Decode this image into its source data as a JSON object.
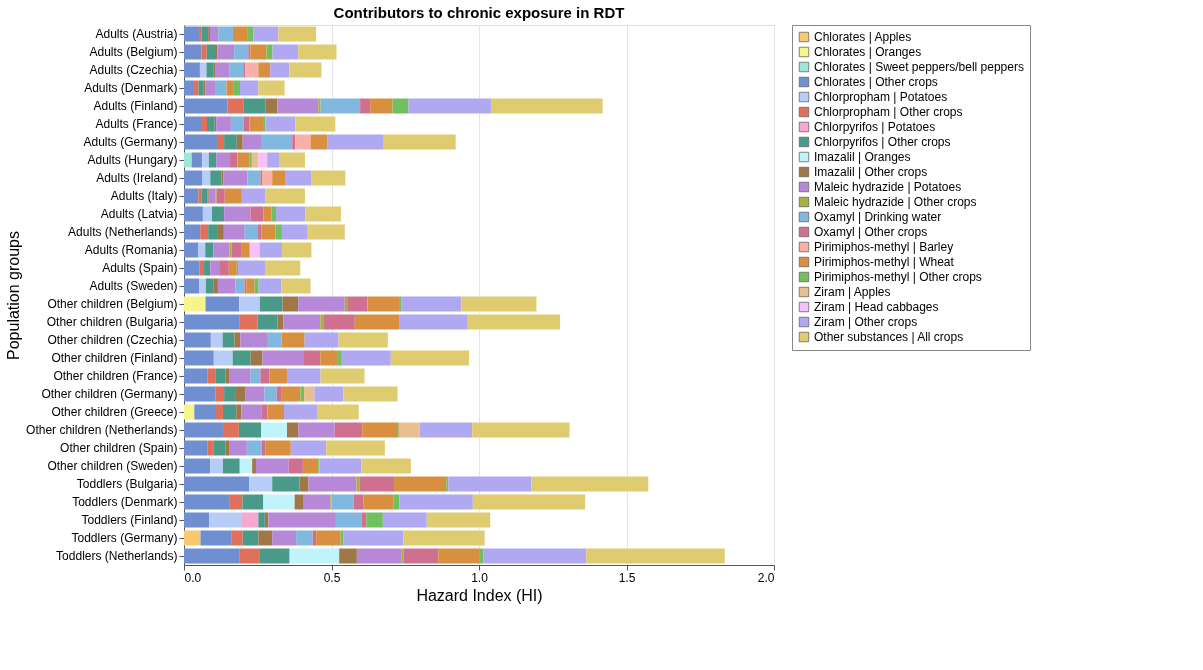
{
  "chart_data": {
    "type": "bar",
    "orientation": "horizontal",
    "stacked": true,
    "title": "Contributors to chronic exposure in RDT",
    "xlabel": "Hazard Index (HI)",
    "ylabel": "Population groups",
    "categories": [
      "Adults (Austria)",
      "Adults (Belgium)",
      "Adults (Czechia)",
      "Adults (Denmark)",
      "Adults (Finland)",
      "Adults (France)",
      "Adults (Germany)",
      "Adults (Hungary)",
      "Adults (Ireland)",
      "Adults (Italy)",
      "Adults (Latvia)",
      "Adults (Netherlands)",
      "Adults (Romania)",
      "Adults (Spain)",
      "Adults (Sweden)",
      "Other children (Belgium)",
      "Other children (Bulgaria)",
      "Other children (Czechia)",
      "Other children (Finland)",
      "Other children (France)",
      "Other children (Germany)",
      "Other children (Greece)",
      "Other children (Netherlands)",
      "Other children (Spain)",
      "Other children (Sweden)",
      "Toddlers (Bulgaria)",
      "Toddlers (Denmark)",
      "Toddlers (Finland)",
      "Toddlers (Germany)",
      "Toddlers (Netherlands)"
    ],
    "xlim": [
      0,
      2
    ],
    "xticks": [
      {
        "value": 0,
        "label": "0.0"
      },
      {
        "value": 0.5,
        "label": "0.5"
      },
      {
        "value": 1,
        "label": "1.0"
      },
      {
        "value": 1.5,
        "label": "1.5"
      },
      {
        "value": 2,
        "label": "2.0"
      }
    ],
    "grid": "x",
    "legend": "right",
    "series": [
      {
        "name": "Chlorates | Apples",
        "color": "#f9c970",
        "values": [
          0,
          0,
          0,
          0,
          0,
          0,
          0,
          0,
          0,
          0,
          0,
          0,
          0,
          0,
          0,
          0,
          0,
          0,
          0,
          0,
          0,
          0,
          0,
          0,
          0,
          0,
          0,
          0,
          0.056,
          0
        ]
      },
      {
        "name": "Chlorates | Oranges",
        "color": "#f5f58a",
        "values": [
          0,
          0,
          0,
          0,
          0,
          0,
          0,
          0,
          0,
          0,
          0,
          0,
          0,
          0,
          0,
          0.073,
          0,
          0,
          0,
          0,
          0,
          0.035,
          0,
          0,
          0,
          0,
          0,
          0,
          0,
          0
        ]
      },
      {
        "name": "Chlorates | Sweet peppers/bell peppers",
        "color": "#a0e6d8",
        "values": [
          0,
          0,
          0,
          0,
          0,
          0,
          0,
          0.026,
          0,
          0,
          0,
          0,
          0,
          0,
          0,
          0,
          0,
          0,
          0,
          0,
          0,
          0,
          0,
          0,
          0,
          0,
          0,
          0,
          0,
          0
        ]
      },
      {
        "name": "Chlorates | Other crops",
        "color": "#6f8fd0",
        "values": [
          0.051,
          0.059,
          0.054,
          0.034,
          0.147,
          0.061,
          0.112,
          0.036,
          0.061,
          0.049,
          0.064,
          0.055,
          0.049,
          0.053,
          0.052,
          0.114,
          0.187,
          0.091,
          0.101,
          0.079,
          0.106,
          0.07,
          0.132,
          0.079,
          0.089,
          0.221,
          0.153,
          0.085,
          0.106,
          0.187
        ]
      },
      {
        "name": "Chlorpropham | Potatoes",
        "color": "#b8ccf8",
        "values": [
          0,
          0,
          0.022,
          0,
          0,
          0,
          0,
          0.022,
          0.028,
          0,
          0.031,
          0,
          0.023,
          0,
          0.022,
          0.07,
          0,
          0.04,
          0.064,
          0,
          0,
          0,
          0,
          0,
          0.043,
          0.078,
          0,
          0.109,
          0,
          0
        ]
      },
      {
        "name": "Chlorpropham | Other crops",
        "color": "#e0705a",
        "values": [
          0.009,
          0.018,
          0,
          0.015,
          0.054,
          0.017,
          0.024,
          0,
          0,
          0.01,
          0,
          0.027,
          0,
          0.015,
          0,
          0,
          0.062,
          0,
          0,
          0.027,
          0.03,
          0.027,
          0.054,
          0.02,
          0,
          0,
          0.045,
          0,
          0.037,
          0.068
        ]
      },
      {
        "name": "Chlorpyrifos | Potatoes",
        "color": "#f7a8d0",
        "values": [
          0,
          0,
          0,
          0,
          0,
          0,
          0,
          0,
          0,
          0,
          0,
          0,
          0,
          0,
          0,
          0,
          0,
          0,
          0,
          0,
          0,
          0,
          0,
          0,
          0,
          0,
          0,
          0.058,
          0,
          0
        ]
      },
      {
        "name": "Chlorpyrifos | Other crops",
        "color": "#4a9a8a",
        "values": [
          0.022,
          0.028,
          0.025,
          0.018,
          0.076,
          0.026,
          0.043,
          0.025,
          0.038,
          0.021,
          0.037,
          0.03,
          0.027,
          0.021,
          0.025,
          0.077,
          0.068,
          0.04,
          0.061,
          0.035,
          0.04,
          0.045,
          0.076,
          0.042,
          0.057,
          0.093,
          0.071,
          0.022,
          0.053,
          0.103
        ]
      },
      {
        "name": "Imazalil | Oranges",
        "color": "#c0f4fa",
        "values": [
          0,
          0,
          0,
          0,
          0,
          0,
          0,
          0,
          0,
          0,
          0,
          0,
          0,
          0,
          0,
          0,
          0,
          0,
          0,
          0,
          0,
          0,
          0.087,
          0,
          0.042,
          0,
          0.106,
          0,
          0,
          0.168
        ]
      },
      {
        "name": "Imazalil | Other crops",
        "color": "#a07848",
        "values": [
          0.006,
          0.008,
          0.004,
          0.005,
          0.04,
          0.005,
          0.02,
          0,
          0.007,
          0.004,
          0.004,
          0.023,
          0,
          0,
          0.016,
          0.053,
          0.02,
          0.02,
          0.04,
          0.014,
          0.033,
          0.017,
          0.038,
          0.014,
          0.013,
          0.03,
          0.031,
          0.012,
          0.047,
          0.06
        ]
      },
      {
        "name": "Maleic hydrazide | Potatoes",
        "color": "#b888d8",
        "values": [
          0.028,
          0.057,
          0.05,
          0.033,
          0.138,
          0.05,
          0.062,
          0.047,
          0.081,
          0.023,
          0.089,
          0.071,
          0.055,
          0.033,
          0.059,
          0.158,
          0.125,
          0.09,
          0.138,
          0.071,
          0.064,
          0.068,
          0.124,
          0.058,
          0.111,
          0.163,
          0.09,
          0.229,
          0.081,
          0.152
        ]
      },
      {
        "name": "Maleic hydrazide | Other crops",
        "color": "#a8b040",
        "values": [
          0,
          0,
          0,
          0,
          0.008,
          0,
          0,
          0,
          0,
          0.004,
          0,
          0,
          0.007,
          0,
          0,
          0.008,
          0.01,
          0.004,
          0,
          0,
          0,
          0,
          0,
          0,
          0,
          0.011,
          0.004,
          0,
          0,
          0.006
        ]
      },
      {
        "name": "Oxamyl | Drinking water",
        "color": "#80b8e0",
        "values": [
          0.05,
          0.048,
          0.046,
          0.039,
          0.134,
          0.044,
          0.106,
          0,
          0.044,
          0,
          0,
          0.045,
          0,
          0,
          0.031,
          0,
          0,
          0.046,
          0,
          0.033,
          0.041,
          0,
          0,
          0.05,
          0,
          0,
          0.075,
          0.088,
          0.056,
          0
        ]
      },
      {
        "name": "Oxamyl | Other crops",
        "color": "#d07090",
        "values": [
          0,
          0.007,
          0.006,
          0,
          0.034,
          0.019,
          0.01,
          0.025,
          0.007,
          0.027,
          0.044,
          0.011,
          0.035,
          0.03,
          0.006,
          0.069,
          0.107,
          0,
          0.058,
          0.03,
          0.015,
          0.021,
          0.093,
          0.014,
          0.048,
          0.116,
          0.034,
          0.015,
          0.012,
          0.118
        ]
      },
      {
        "name": "Pirimiphos-methyl | Barley",
        "color": "#f8b0a8",
        "values": [
          0,
          0,
          0.045,
          0,
          0,
          0,
          0.052,
          0,
          0.033,
          0,
          0,
          0,
          0,
          0,
          0,
          0,
          0,
          0,
          0,
          0,
          0,
          0,
          0,
          0,
          0,
          0,
          0,
          0,
          0,
          0
        ]
      },
      {
        "name": "Pirimiphos-methyl | Wheat",
        "color": "#d89040",
        "values": [
          0.048,
          0.055,
          0.04,
          0.025,
          0.076,
          0.046,
          0.058,
          0.041,
          0.046,
          0.058,
          0.028,
          0.048,
          0.027,
          0.027,
          0.028,
          0.11,
          0.15,
          0.078,
          0.057,
          0.06,
          0.066,
          0.056,
          0.123,
          0.085,
          0.052,
          0.177,
          0.102,
          0,
          0.083,
          0.141
        ]
      },
      {
        "name": "Pirimiphos-methyl | Other crops",
        "color": "#70c060",
        "values": [
          0.022,
          0.02,
          0,
          0.021,
          0.054,
          0.008,
          0,
          0.008,
          0,
          0,
          0.015,
          0.022,
          0,
          0.004,
          0.014,
          0.004,
          0,
          0,
          0.016,
          0,
          0.012,
          0,
          0.004,
          0,
          0.004,
          0.007,
          0.019,
          0.056,
          0.01,
          0.011
        ]
      },
      {
        "name": "Ziram | Apples",
        "color": "#e8c090",
        "values": [
          0,
          0,
          0,
          0,
          0,
          0,
          0,
          0.022,
          0,
          0,
          0,
          0,
          0,
          0,
          0,
          0,
          0,
          0,
          0,
          0,
          0.035,
          0,
          0.068,
          0,
          0,
          0,
          0,
          0,
          0,
          0
        ]
      },
      {
        "name": "Ziram | Head cabbages",
        "color": "#f8c0f8",
        "values": [
          0,
          0,
          0,
          0,
          0,
          0,
          0,
          0.03,
          0,
          0,
          0,
          0,
          0.033,
          0,
          0,
          0,
          0,
          0,
          0,
          0,
          0,
          0,
          0,
          0,
          0,
          0,
          0,
          0,
          0,
          0
        ]
      },
      {
        "name": "Ziram | Other crops",
        "color": "#b0a8f0",
        "values": [
          0.084,
          0.087,
          0.065,
          0.062,
          0.28,
          0.102,
          0.19,
          0.04,
          0.086,
          0.079,
          0.099,
          0.085,
          0.076,
          0.094,
          0.077,
          0.204,
          0.233,
          0.115,
          0.166,
          0.114,
          0.098,
          0.112,
          0.178,
          0.12,
          0.142,
          0.282,
          0.249,
          0.149,
          0.202,
          0.35
        ]
      },
      {
        "name": "Other substances | All crops",
        "color": "#e0cc70",
        "values": [
          0.128,
          0.13,
          0.109,
          0.089,
          0.378,
          0.135,
          0.244,
          0.088,
          0.116,
          0.135,
          0.121,
          0.128,
          0.1,
          0.117,
          0.099,
          0.255,
          0.313,
          0.167,
          0.265,
          0.149,
          0.184,
          0.141,
          0.33,
          0.199,
          0.168,
          0.396,
          0.381,
          0.215,
          0.276,
          0.469
        ]
      }
    ]
  }
}
